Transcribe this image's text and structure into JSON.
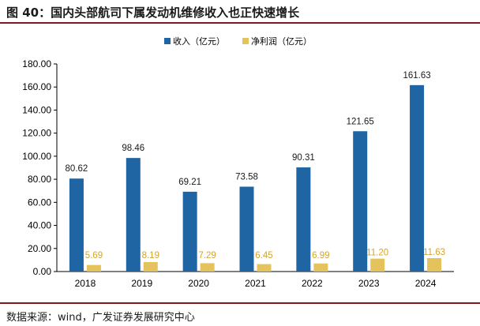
{
  "figure": {
    "title": "图 40：国内头部航司下属发动机维修收入也正快速增长",
    "source": "数据来源：wind，广发证券发展研究中心"
  },
  "colors": {
    "revenue": "#1f64a3",
    "net_profit": "#e5c35c",
    "rule": "#7f1b20",
    "profit_label": "#d4a52a"
  },
  "chart_data": {
    "type": "bar",
    "title": "",
    "xlabel": "",
    "ylabel": "",
    "categories": [
      "2018",
      "2019",
      "2020",
      "2021",
      "2022",
      "2023",
      "2024"
    ],
    "series": [
      {
        "name": "收入（亿元）",
        "values": [
          80.62,
          98.46,
          69.21,
          73.58,
          90.31,
          121.65,
          161.63
        ],
        "labels": [
          "80.62",
          "98.46",
          "69.21",
          "73.58",
          "90.31",
          "121.65",
          "161.63"
        ]
      },
      {
        "name": "净利润（亿元）",
        "values": [
          5.69,
          8.19,
          7.29,
          6.45,
          6.99,
          11.2,
          11.63
        ],
        "labels": [
          "5.69",
          "8.19",
          "7.29",
          "6.45",
          "6.99",
          "11.20",
          "11.63"
        ]
      }
    ],
    "ylim": [
      0,
      180
    ],
    "yticks": [
      "0.00",
      "20.00",
      "40.00",
      "60.00",
      "80.00",
      "100.00",
      "120.00",
      "140.00",
      "160.00",
      "180.00"
    ],
    "grid": false,
    "legend_position": "top-center"
  }
}
